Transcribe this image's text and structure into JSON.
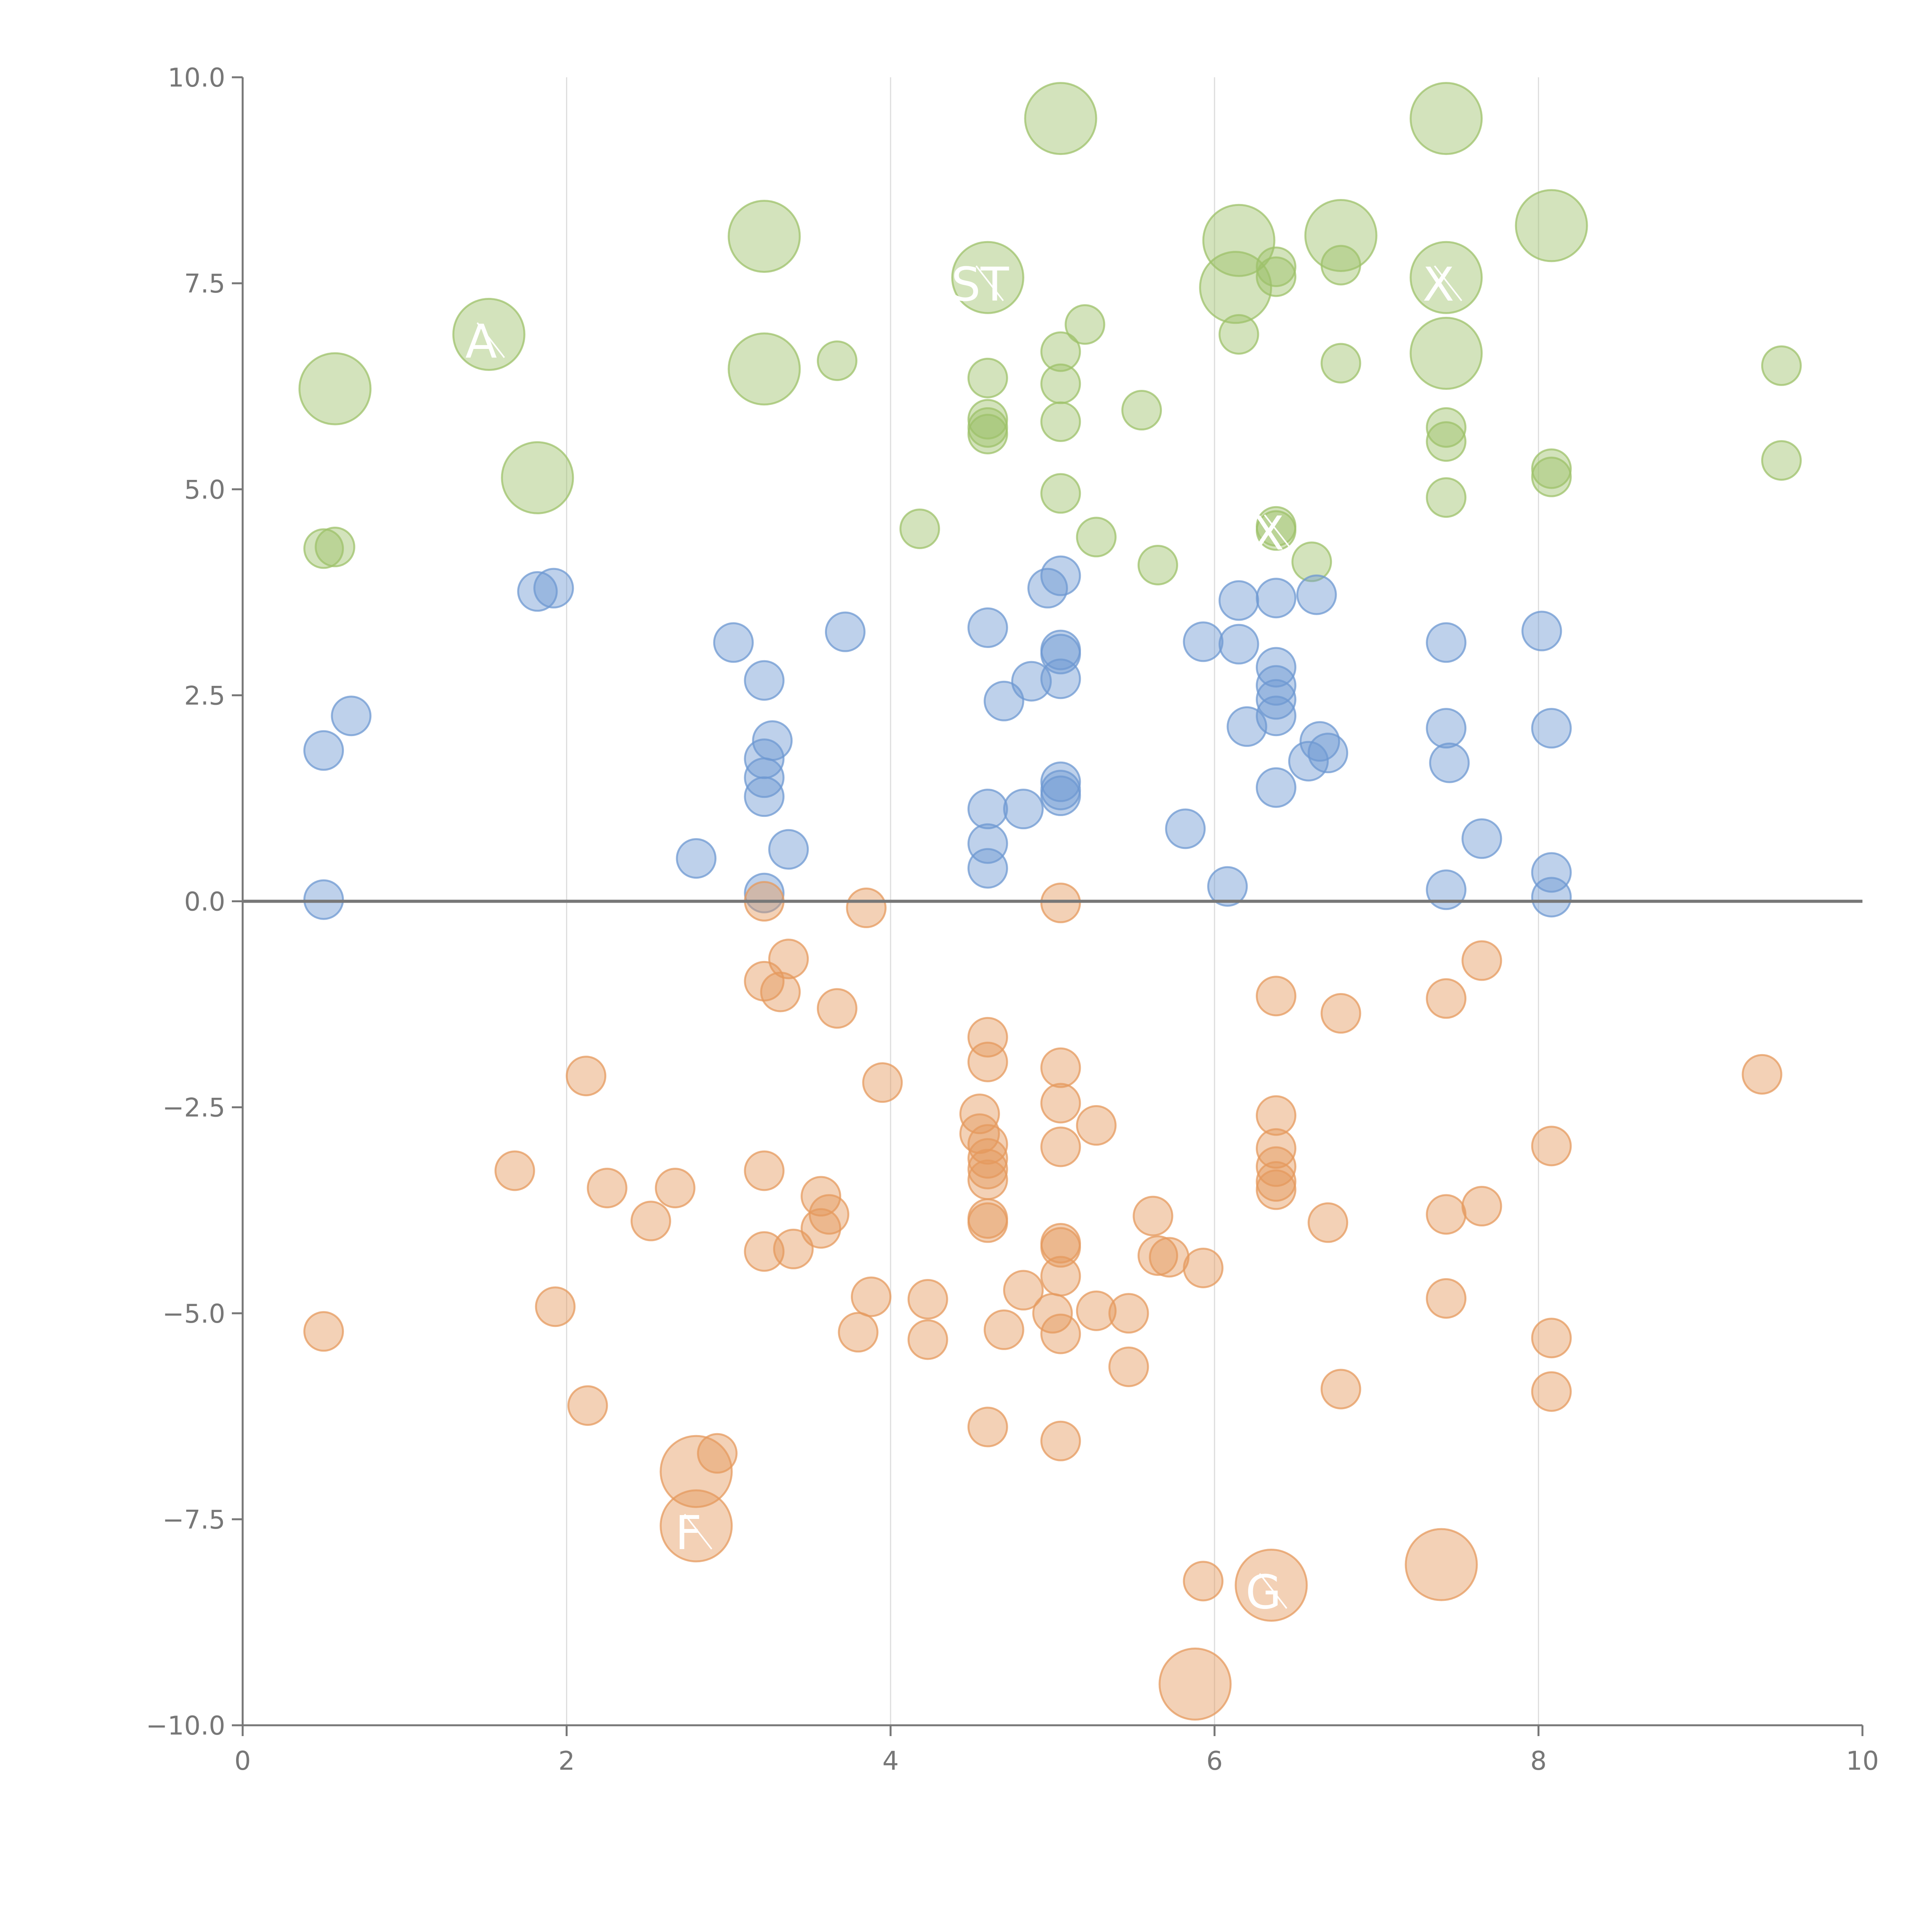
{
  "chart_data": {
    "type": "scatter",
    "title": "",
    "xlabel": "",
    "ylabel": "",
    "xlim": [
      0,
      10
    ],
    "ylim": [
      -10,
      10
    ],
    "grid": "vertical",
    "reference_line_y": 0,
    "x_ticks": [
      "0",
      "2",
      "4",
      "6",
      "8",
      "10"
    ],
    "y_ticks": [
      "10.0",
      "7.5",
      "5.0",
      "2.5",
      "0.0",
      "−2.5",
      "−5.0",
      "−7.5",
      "−10.0"
    ],
    "colors": {
      "green": "#9dc16a",
      "blue": "#6e98d2",
      "orange": "#e59a5e"
    },
    "series": [
      {
        "name": "green",
        "points": [
          [
            5.05,
            9.5,
            1
          ],
          [
            7.43,
            9.5,
            1
          ],
          [
            3.22,
            8.07,
            1
          ],
          [
            6.15,
            8.02,
            1
          ],
          [
            6.78,
            8.08,
            1
          ],
          [
            8.08,
            8.2,
            1
          ],
          [
            4.6,
            7.57,
            1
          ],
          [
            7.43,
            7.57,
            1
          ],
          [
            6.13,
            7.45,
            1
          ],
          [
            1.52,
            6.88,
            1
          ],
          [
            0.57,
            6.22,
            1
          ],
          [
            3.22,
            6.46,
            1
          ],
          [
            7.43,
            6.65,
            1
          ],
          [
            1.82,
            5.14,
            1
          ],
          [
            6.38,
            7.7,
            0
          ],
          [
            6.38,
            7.58,
            0
          ],
          [
            6.78,
            7.72,
            0
          ],
          [
            5.2,
            7.0,
            0
          ],
          [
            6.15,
            6.88,
            0
          ],
          [
            5.05,
            6.67,
            0
          ],
          [
            3.67,
            6.56,
            0
          ],
          [
            6.78,
            6.53,
            0
          ],
          [
            9.5,
            6.5,
            0
          ],
          [
            4.6,
            6.35,
            0
          ],
          [
            5.05,
            6.28,
            0
          ],
          [
            5.55,
            5.96,
            0
          ],
          [
            4.6,
            5.85,
            0
          ],
          [
            4.6,
            5.75,
            0
          ],
          [
            4.6,
            5.67,
            0
          ],
          [
            5.05,
            5.82,
            0
          ],
          [
            7.43,
            5.75,
            0
          ],
          [
            7.43,
            5.58,
            0
          ],
          [
            9.5,
            5.35,
            0
          ],
          [
            8.08,
            5.25,
            0
          ],
          [
            8.08,
            5.15,
            0
          ],
          [
            5.05,
            4.95,
            0
          ],
          [
            7.43,
            4.9,
            0
          ],
          [
            4.18,
            4.52,
            0
          ],
          [
            6.38,
            4.55,
            0
          ],
          [
            6.38,
            4.5,
            0
          ],
          [
            5.27,
            4.42,
            0
          ],
          [
            0.5,
            4.28,
            0
          ],
          [
            0.57,
            4.3,
            0
          ],
          [
            5.65,
            4.08,
            0
          ],
          [
            6.6,
            4.12,
            0
          ]
        ]
      },
      {
        "name": "blue",
        "points": [
          [
            5.05,
            3.95,
            0
          ],
          [
            4.97,
            3.8,
            0
          ],
          [
            1.82,
            3.76,
            0
          ],
          [
            1.92,
            3.8,
            0
          ],
          [
            6.15,
            3.65,
            0
          ],
          [
            6.38,
            3.68,
            0
          ],
          [
            6.63,
            3.72,
            0
          ],
          [
            4.6,
            3.32,
            0
          ],
          [
            3.72,
            3.27,
            0
          ],
          [
            8.02,
            3.28,
            0
          ],
          [
            3.03,
            3.14,
            0
          ],
          [
            5.93,
            3.15,
            0
          ],
          [
            6.15,
            3.12,
            0
          ],
          [
            7.43,
            3.14,
            0
          ],
          [
            5.05,
            3.05,
            0
          ],
          [
            5.05,
            3.0,
            0
          ],
          [
            6.38,
            2.84,
            0
          ],
          [
            3.22,
            2.68,
            0
          ],
          [
            4.87,
            2.67,
            0
          ],
          [
            5.05,
            2.7,
            0
          ],
          [
            6.38,
            2.62,
            0
          ],
          [
            6.38,
            2.45,
            0
          ],
          [
            4.7,
            2.43,
            0
          ],
          [
            0.67,
            2.25,
            0
          ],
          [
            6.38,
            2.25,
            0
          ],
          [
            6.2,
            2.12,
            0
          ],
          [
            7.43,
            2.1,
            0
          ],
          [
            8.08,
            2.1,
            0
          ],
          [
            3.27,
            1.95,
            0
          ],
          [
            6.65,
            1.94,
            0
          ],
          [
            0.5,
            1.83,
            0
          ],
          [
            6.7,
            1.8,
            0
          ],
          [
            6.58,
            1.7,
            0
          ],
          [
            7.45,
            1.68,
            0
          ],
          [
            3.22,
            1.73,
            0
          ],
          [
            3.22,
            1.5,
            0
          ],
          [
            5.05,
            1.45,
            0
          ],
          [
            5.05,
            1.35,
            0
          ],
          [
            5.05,
            1.28,
            0
          ],
          [
            6.38,
            1.38,
            0
          ],
          [
            3.22,
            1.27,
            0
          ],
          [
            4.6,
            1.12,
            0
          ],
          [
            4.82,
            1.12,
            0
          ],
          [
            5.82,
            0.88,
            0
          ],
          [
            7.65,
            0.76,
            0
          ],
          [
            4.6,
            0.7,
            0
          ],
          [
            3.37,
            0.63,
            0
          ],
          [
            2.8,
            0.52,
            0
          ],
          [
            4.6,
            0.4,
            0
          ],
          [
            8.08,
            0.35,
            0
          ],
          [
            6.08,
            0.18,
            0
          ],
          [
            7.43,
            0.14,
            0
          ],
          [
            3.22,
            0.1,
            0
          ],
          [
            0.5,
            0.02,
            0
          ],
          [
            8.08,
            0.05,
            0
          ]
        ]
      },
      {
        "name": "orange",
        "points": [
          [
            3.22,
            0.0,
            0
          ],
          [
            5.05,
            -0.02,
            0
          ],
          [
            3.85,
            -0.08,
            0
          ],
          [
            3.37,
            -0.7,
            0
          ],
          [
            7.65,
            -0.72,
            0
          ],
          [
            3.22,
            -0.97,
            0
          ],
          [
            3.32,
            -1.1,
            0
          ],
          [
            6.38,
            -1.15,
            0
          ],
          [
            7.43,
            -1.18,
            0
          ],
          [
            3.67,
            -1.3,
            0
          ],
          [
            6.78,
            -1.36,
            0
          ],
          [
            4.6,
            -1.65,
            0
          ],
          [
            4.6,
            -1.95,
            0
          ],
          [
            5.05,
            -2.02,
            0
          ],
          [
            2.12,
            -2.12,
            0
          ],
          [
            9.38,
            -2.1,
            0
          ],
          [
            3.95,
            -2.2,
            0
          ],
          [
            5.05,
            -2.45,
            0
          ],
          [
            4.55,
            -2.58,
            0
          ],
          [
            6.38,
            -2.6,
            0
          ],
          [
            5.27,
            -2.72,
            0
          ],
          [
            4.55,
            -2.82,
            0
          ],
          [
            4.6,
            -2.95,
            0
          ],
          [
            5.05,
            -2.98,
            0
          ],
          [
            6.38,
            -3.0,
            0
          ],
          [
            8.08,
            -2.97,
            0
          ],
          [
            4.6,
            -3.12,
            0
          ],
          [
            4.6,
            -3.25,
            0
          ],
          [
            1.68,
            -3.27,
            0
          ],
          [
            3.22,
            -3.27,
            0
          ],
          [
            6.38,
            -3.22,
            0
          ],
          [
            6.38,
            -3.4,
            0
          ],
          [
            4.6,
            -3.38,
            0
          ],
          [
            2.25,
            -3.48,
            0
          ],
          [
            2.67,
            -3.48,
            0
          ],
          [
            6.38,
            -3.5,
            0
          ],
          [
            3.57,
            -3.58,
            0
          ],
          [
            7.65,
            -3.7,
            0
          ],
          [
            3.62,
            -3.8,
            0
          ],
          [
            5.62,
            -3.82,
            0
          ],
          [
            7.43,
            -3.8,
            0
          ],
          [
            4.6,
            -3.85,
            0
          ],
          [
            4.6,
            -3.9,
            0
          ],
          [
            2.52,
            -3.88,
            0
          ],
          [
            6.7,
            -3.9,
            0
          ],
          [
            3.57,
            -3.97,
            0
          ],
          [
            5.05,
            -4.15,
            0
          ],
          [
            5.05,
            -4.2,
            0
          ],
          [
            3.22,
            -4.25,
            0
          ],
          [
            3.4,
            -4.22,
            0
          ],
          [
            5.65,
            -4.3,
            0
          ],
          [
            5.72,
            -4.32,
            0
          ],
          [
            5.93,
            -4.45,
            0
          ],
          [
            5.05,
            -4.55,
            0
          ],
          [
            4.82,
            -4.72,
            0
          ],
          [
            3.88,
            -4.8,
            0
          ],
          [
            4.23,
            -4.83,
            0
          ],
          [
            7.43,
            -4.82,
            0
          ],
          [
            1.93,
            -4.92,
            0
          ],
          [
            5.27,
            -4.97,
            0
          ],
          [
            5.0,
            -5.0,
            0
          ],
          [
            5.47,
            -5.0,
            0
          ],
          [
            0.5,
            -5.22,
            0
          ],
          [
            3.8,
            -5.23,
            0
          ],
          [
            4.7,
            -5.2,
            0
          ],
          [
            5.05,
            -5.25,
            0
          ],
          [
            4.23,
            -5.32,
            0
          ],
          [
            8.08,
            -5.3,
            0
          ],
          [
            5.47,
            -5.65,
            0
          ],
          [
            6.78,
            -5.92,
            0
          ],
          [
            8.08,
            -5.95,
            0
          ],
          [
            2.13,
            -6.12,
            0
          ],
          [
            4.6,
            -6.38,
            0
          ],
          [
            5.05,
            -6.55,
            0
          ],
          [
            2.93,
            -6.7,
            0
          ],
          [
            5.93,
            -8.25,
            0
          ],
          [
            2.8,
            -6.92,
            1
          ],
          [
            2.8,
            -7.58,
            1
          ],
          [
            7.4,
            -8.05,
            1
          ],
          [
            6.35,
            -8.3,
            1
          ],
          [
            5.88,
            -9.5,
            1
          ]
        ]
      }
    ],
    "annotations": [
      {
        "text": "A",
        "x": 1.52,
        "y": 6.88
      },
      {
        "text": "ST",
        "x": 4.6,
        "y": 7.57
      },
      {
        "text": "X",
        "x": 7.43,
        "y": 7.57
      },
      {
        "text": "X",
        "x": 6.38,
        "y": 4.55
      },
      {
        "text": "F",
        "x": 2.8,
        "y": -7.58
      },
      {
        "text": "G",
        "x": 6.35,
        "y": -8.3
      }
    ]
  }
}
